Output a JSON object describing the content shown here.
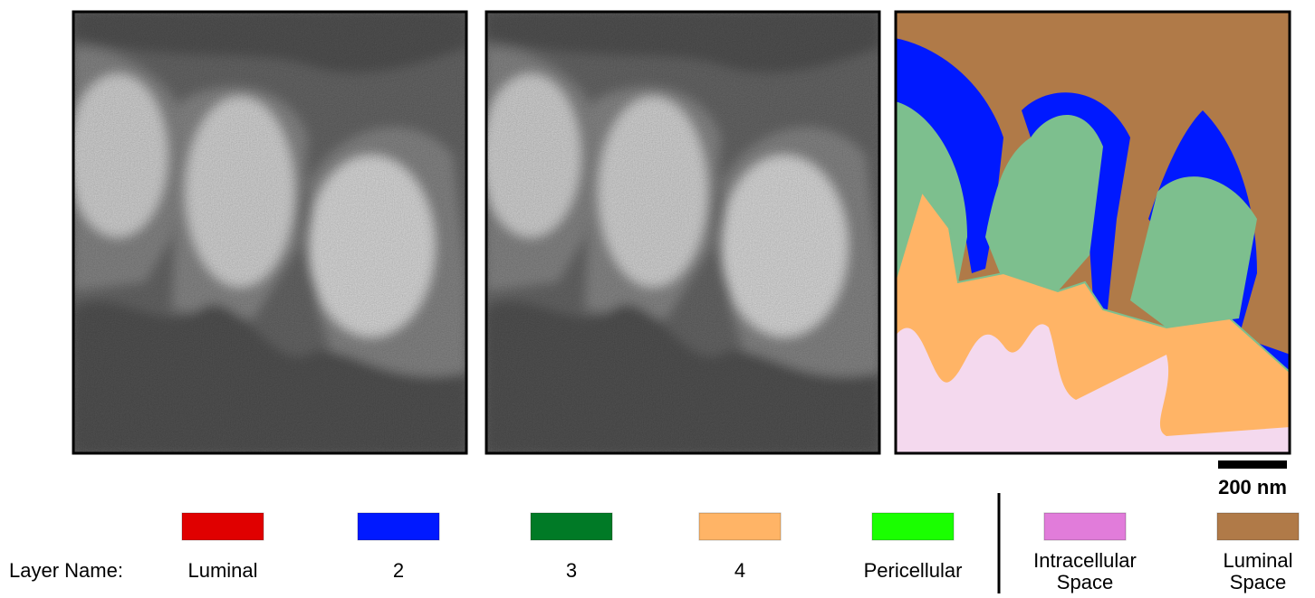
{
  "scale_bar": {
    "label": "200 nm"
  },
  "legend": {
    "title": "Layer Name:",
    "items": [
      {
        "label": [
          "Luminal"
        ],
        "color": "#e00000"
      },
      {
        "label": [
          "2"
        ],
        "color": "#0019ff"
      },
      {
        "label": [
          "3"
        ],
        "color": "#007a26"
      },
      {
        "label": [
          "4"
        ],
        "color": "#ffb466"
      },
      {
        "label": [
          "Pericellular"
        ],
        "color": "#1aff00"
      },
      {
        "label": [
          "Intracellular",
          "Space"
        ],
        "color": "#e17cda"
      },
      {
        "label": [
          "Luminal",
          "Space"
        ],
        "color": "#b07a48"
      }
    ]
  }
}
